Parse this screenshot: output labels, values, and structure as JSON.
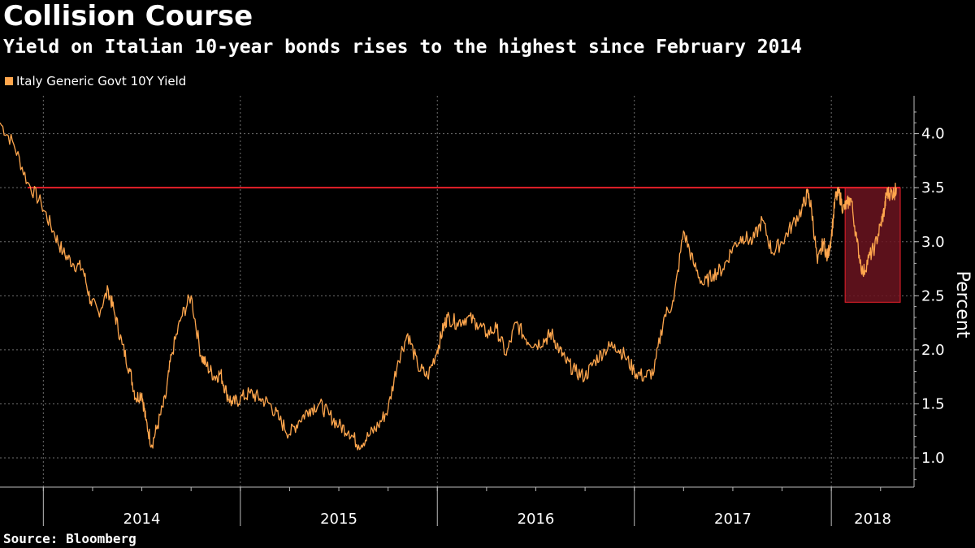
{
  "title": "Collision Course",
  "subtitle": "Yield on Italian 10-year bonds rises to the highest since February 2014",
  "source": "Source: Bloomberg",
  "colors": {
    "series": "#ffa64d",
    "threshold": "#e8202a",
    "highlight_fill": "#6b1420",
    "grid": "#6e6e6e",
    "axis": "#bbbbbb"
  },
  "chart_data": {
    "type": "line",
    "title": "Collision Course",
    "subtitle": "Yield on Italian 10-year bonds rises to the highest since February 2014",
    "xlabel": "",
    "ylabel": "Percent",
    "x_ticks": [
      "2014",
      "2015",
      "2016",
      "2017",
      "2018"
    ],
    "xlim": [
      2013.78,
      2018.42
    ],
    "ylim": [
      0.73,
      4.35
    ],
    "y_ticks": [
      1.0,
      1.5,
      2.0,
      2.5,
      3.0,
      3.5,
      4.0
    ],
    "y_tick_labels": [
      "1.0",
      "1.5",
      "2.0",
      "2.5",
      "3.0",
      "3.5",
      "4.0"
    ],
    "grid": true,
    "legend_position": "top-left",
    "series": [
      {
        "name": "Italy Generic Govt 10Y Yield",
        "x": [
          2013.78,
          2013.85,
          2013.92,
          2013.99,
          2014.05,
          2014.1,
          2014.15,
          2014.2,
          2014.24,
          2014.28,
          2014.33,
          2014.36,
          2014.4,
          2014.44,
          2014.47,
          2014.5,
          2014.52,
          2014.55,
          2014.58,
          2014.62,
          2014.65,
          2014.7,
          2014.75,
          2014.8,
          2014.83,
          2014.87,
          2014.9,
          2014.93,
          2014.96,
          2015.0,
          2015.05,
          2015.1,
          2015.15,
          2015.2,
          2015.25,
          2015.3,
          2015.35,
          2015.4,
          2015.45,
          2015.5,
          2015.55,
          2015.6,
          2015.65,
          2015.7,
          2015.75,
          2015.8,
          2015.85,
          2015.9,
          2015.95,
          2016.0,
          2016.03,
          2016.05,
          2016.1,
          2016.15,
          2016.2,
          2016.25,
          2016.3,
          2016.35,
          2016.4,
          2016.45,
          2016.5,
          2016.55,
          2016.58,
          2016.62,
          2016.65,
          2016.7,
          2016.75,
          2016.8,
          2016.85,
          2016.9,
          2016.95,
          2017.0,
          2017.05,
          2017.1,
          2017.15,
          2017.2,
          2017.25,
          2017.3,
          2017.35,
          2017.4,
          2017.45,
          2017.5,
          2017.55,
          2017.6,
          2017.65,
          2017.7,
          2017.75,
          2017.8,
          2017.85,
          2017.88,
          2017.9,
          2017.93,
          2017.96,
          2017.98,
          2018.0,
          2018.02,
          2018.04,
          2018.06,
          2018.08,
          2018.1,
          2018.13,
          2018.16,
          2018.19,
          2018.22,
          2018.25,
          2018.27,
          2018.28,
          2018.3,
          2018.32,
          2018.33
        ],
        "values": [
          4.1,
          3.9,
          3.55,
          3.35,
          3.1,
          2.9,
          2.8,
          2.75,
          2.45,
          2.35,
          2.55,
          2.35,
          2.05,
          1.8,
          1.55,
          1.6,
          1.35,
          1.12,
          1.3,
          1.55,
          1.95,
          2.3,
          2.5,
          1.95,
          1.85,
          1.75,
          1.78,
          1.6,
          1.5,
          1.55,
          1.6,
          1.55,
          1.5,
          1.35,
          1.22,
          1.35,
          1.45,
          1.5,
          1.4,
          1.3,
          1.25,
          1.12,
          1.2,
          1.3,
          1.45,
          1.9,
          2.15,
          1.85,
          1.75,
          2.0,
          2.2,
          2.3,
          2.25,
          2.3,
          2.25,
          2.15,
          2.2,
          1.95,
          2.25,
          2.1,
          2.05,
          2.1,
          2.15,
          2.0,
          1.9,
          1.8,
          1.75,
          1.9,
          2.0,
          2.05,
          1.95,
          1.8,
          1.75,
          1.8,
          2.3,
          2.45,
          3.1,
          2.8,
          2.6,
          2.7,
          2.75,
          2.95,
          3.05,
          3.0,
          3.2,
          2.9,
          3.0,
          3.15,
          3.3,
          3.45,
          3.3,
          2.8,
          3.0,
          2.85,
          3.05,
          3.4,
          3.45,
          3.3,
          3.35,
          3.4,
          3.0,
          2.7,
          2.85,
          2.95,
          3.15,
          3.3,
          3.45,
          3.45,
          3.45,
          3.5
        ]
      }
    ],
    "reference_line": {
      "y": 3.5,
      "label": ""
    },
    "highlight_region": {
      "x_start": 2018.07,
      "x_end": 2018.35,
      "y_start": 2.44,
      "y_end": 3.5
    }
  }
}
